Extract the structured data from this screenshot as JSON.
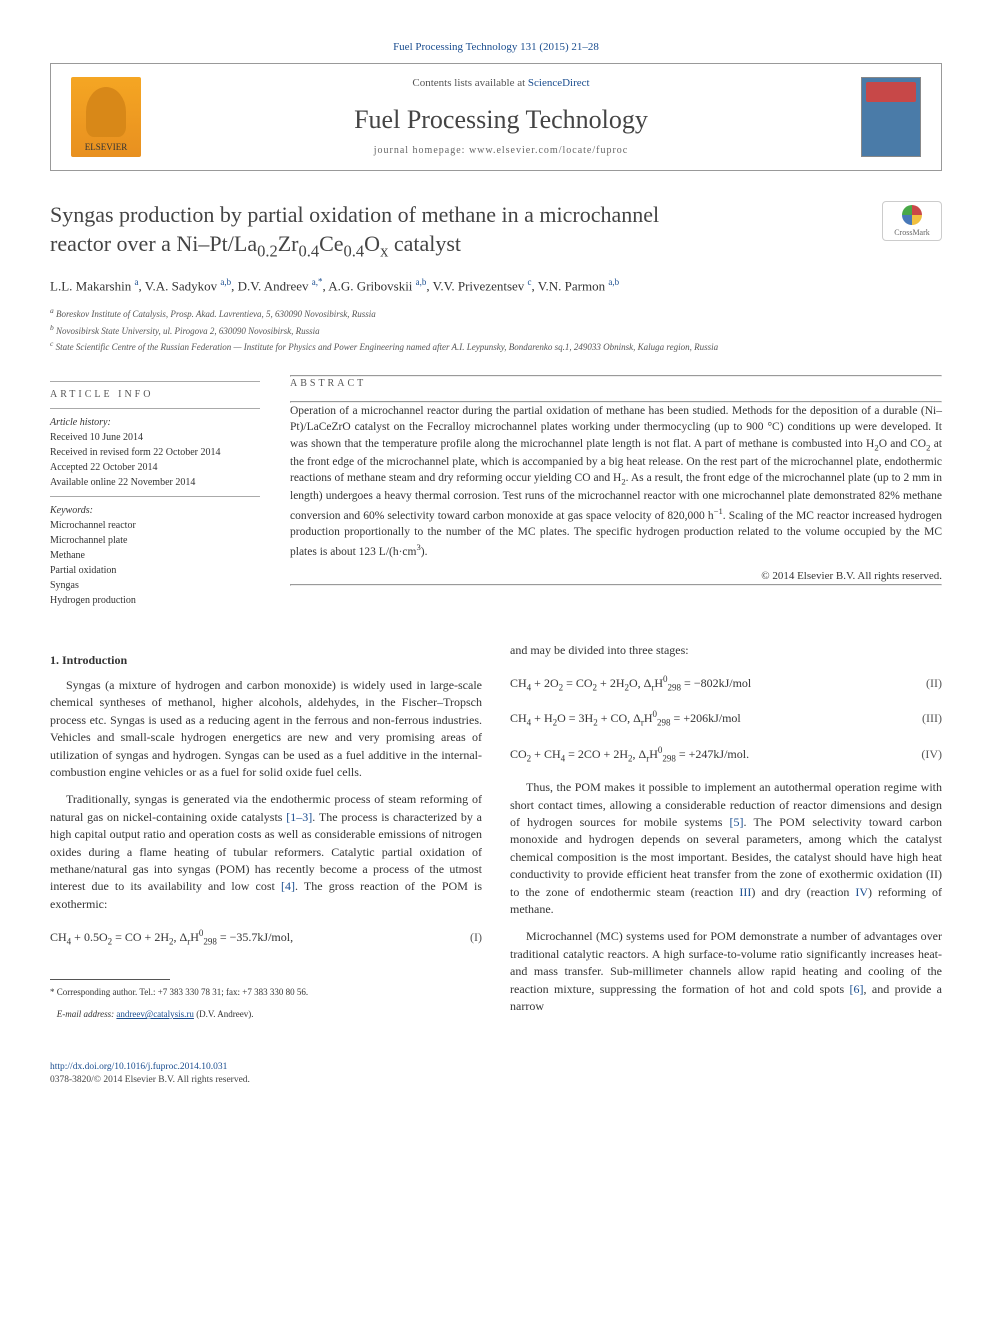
{
  "top_link": "Fuel Processing Technology 131 (2015) 21–28",
  "header": {
    "elsevier": "ELSEVIER",
    "contents_prefix": "Contents lists available at ",
    "contents_link": "ScienceDirect",
    "journal": "Fuel Processing Technology",
    "homepage_prefix": "journal homepage: ",
    "homepage": "www.elsevier.com/locate/fuproc"
  },
  "crossmark": "CrossMark",
  "title_line1": "Syngas production by partial oxidation of methane in a microchannel",
  "title_line2_html": "reactor over a Ni–Pt/La<sub>0.2</sub>Zr<sub>0.4</sub>Ce<sub>0.4</sub>O<sub>x</sub> catalyst",
  "authors_html": "L.L. Makarshin <span class='sup'>a</span>, V.A. Sadykov <span class='sup'>a,b</span>, D.V. Andreev <span class='sup'>a,</span><a href='#'><span class='sup'>*</span></a>, A.G. Gribovskii <span class='sup'>a,b</span>, V.V. Privezentsev <span class='sup'>c</span>, V.N. Parmon <span class='sup'>a,b</span>",
  "affiliations": {
    "a": "Boreskov Institute of Catalysis, Prosp. Akad. Lavrentieva, 5, 630090 Novosibirsk, Russia",
    "b": "Novosibirsk State University, ul. Pirogova 2, 630090 Novosibirsk, Russia",
    "c": "State Scientific Centre of the Russian Federation — Institute for Physics and Power Engineering named after A.I. Leypunsky, Bondarenko sq.1, 249033 Obninsk, Kaluga region, Russia"
  },
  "info": {
    "heading": "ARTICLE INFO",
    "history_title": "Article history:",
    "history": [
      "Received 10 June 2014",
      "Received in revised form 22 October 2014",
      "Accepted 22 October 2014",
      "Available online 22 November 2014"
    ],
    "keywords_title": "Keywords:",
    "keywords": [
      "Microchannel reactor",
      "Microchannel plate",
      "Methane",
      "Partial oxidation",
      "Syngas",
      "Hydrogen production"
    ]
  },
  "abstract": {
    "heading": "ABSTRACT",
    "text_html": "Operation of a microchannel reactor during the partial oxidation of methane has been studied. Methods for the deposition of a durable (Ni–Pt)/LaCeZrO catalyst on the Fecralloy microchannel plates working under thermocycling (up to 900 °C) conditions up were developed. It was shown that the temperature profile along the microchannel plate length is not flat. A part of methane is combusted into H<sub>2</sub>O and CO<sub>2</sub> at the front edge of the microchannel plate, which is accompanied by a big heat release. On the rest part of the microchannel plate, endothermic reactions of methane steam and dry reforming occur yielding CO and H<sub>2</sub>. As a result, the front edge of the microchannel plate (up to 2 mm in length) undergoes a heavy thermal corrosion. Test runs of the microchannel reactor with one microchannel plate demonstrated 82% methane conversion and 60% selectivity toward carbon monoxide at gas space velocity of 820,000 h<sup class='chem'>−1</sup>. Scaling of the MC reactor increased hydrogen production proportionally to the number of the MC plates. The specific hydrogen production related to the volume occupied by the MC plates is about 123 L/(h·cm<sup class='chem'>3</sup>).",
    "copyright": "© 2014 Elsevier B.V. All rights reserved."
  },
  "body": {
    "section1_title": "1. Introduction",
    "para1": "Syngas (a mixture of hydrogen and carbon monoxide) is widely used in large-scale chemical syntheses of methanol, higher alcohols, aldehydes, in the Fischer–Tropsch process etc. Syngas is used as a reducing agent in the ferrous and non-ferrous industries. Vehicles and small-scale hydrogen energetics are new and very promising areas of utilization of syngas and hydrogen. Syngas can be used as a fuel additive in the internal-combustion engine vehicles or as a fuel for solid oxide fuel cells.",
    "para2_html": "Traditionally, syngas is generated via the endothermic process of steam reforming of natural gas on nickel-containing oxide catalysts <span class='ref'>[1–3]</span>. The process is characterized by a high capital output ratio and operation costs as well as considerable emissions of nitrogen oxides during a flame heating of tubular reformers. Catalytic partial oxidation of methane/natural gas into syngas (POM) has recently become a process of the utmost interest due to its availability and low cost <span class='ref'>[4]</span>. The gross reaction of the POM is exothermic:",
    "eq1_html": "CH<sub>4</sub> + 0.5O<sub>2</sub> = CO + 2H<sub>2</sub>, Δ<sub>r</sub>H<sup class='chem'>0</sup><sub>298</sub> = −35.7kJ/mol,",
    "eq1_label": "(I)",
    "para3": "and may be divided into three stages:",
    "eq2_html": "CH<sub>4</sub> + 2O<sub>2</sub> = CO<sub>2</sub> + 2H<sub>2</sub>O, Δ<sub>r</sub>H<sup class='chem'>0</sup><sub>298</sub> = −802kJ/mol",
    "eq2_label": "(II)",
    "eq3_html": "CH<sub>4</sub> + H<sub>2</sub>O = 3H<sub>2</sub> + CO, Δ<sub>r</sub>H<sup class='chem'>0</sup><sub>298</sub> = +206kJ/mol",
    "eq3_label": "(III)",
    "eq4_html": "CO<sub>2</sub> + CH<sub>4</sub> = 2CO + 2H<sub>2</sub>, Δ<sub>r</sub>H<sup class='chem'>0</sup><sub>298</sub> = +247kJ/mol.",
    "eq4_label": "(IV)",
    "para4_html": "Thus, the POM makes it possible to implement an autothermal operation regime with short contact times, allowing a considerable reduction of reactor dimensions and design of hydrogen sources for mobile systems <span class='ref'>[5]</span>. The POM selectivity toward carbon monoxide and hydrogen depends on several parameters, among which the catalyst chemical composition is the most important. Besides, the catalyst should have high heat conductivity to provide efficient heat transfer from the zone of exothermic oxidation (II) to the zone of endothermic steam (reaction <span class='ref'>III</span>) and dry (reaction <span class='ref'>IV</span>) reforming of methane.",
    "para5_html": "Microchannel (MC) systems used for POM demonstrate a number of advantages over traditional catalytic reactors. A high surface-to-volume ratio significantly increases heat- and mass transfer. Sub-millimeter channels allow rapid heating and cooling of the reaction mixture, suppressing the formation of hot and cold spots <span class='ref'>[6]</span>, and provide a narrow"
  },
  "footnote": {
    "corr_html": "* Corresponding author. Tel.: +7 383 330 78 31; fax: +7 383 330 80 56.",
    "email_label": "E-mail address:",
    "email": "andreev@catalysis.ru",
    "email_who": "(D.V. Andreev)."
  },
  "doi": {
    "url": "http://dx.doi.org/10.1016/j.fuproc.2014.10.031",
    "line2": "0378-3820/© 2014 Elsevier B.V. All rights reserved."
  }
}
